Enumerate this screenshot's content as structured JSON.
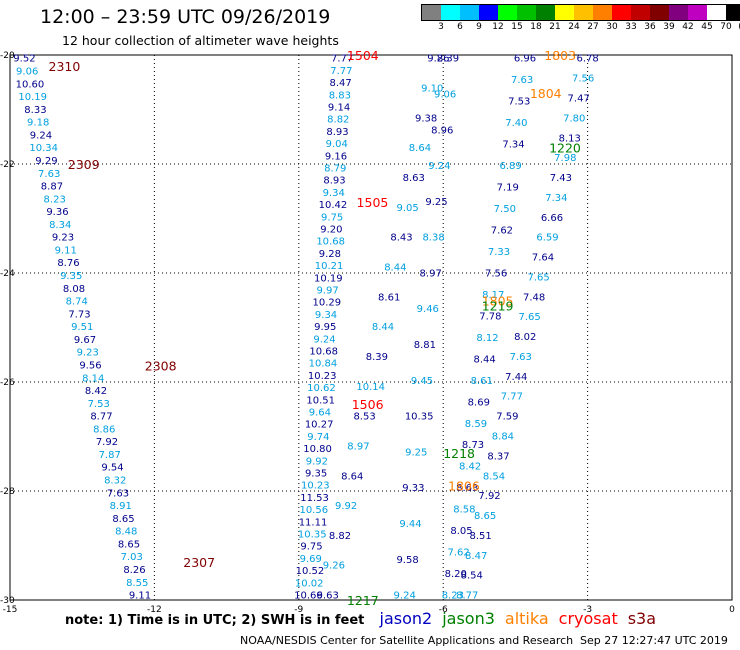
{
  "header": {
    "title": "12:00 – 23:59 UTC 09/26/2019",
    "subtitle": "12 hour collection of altimeter wave heights"
  },
  "scale": {
    "unit": "(ft)",
    "colors": [
      "#808080",
      "#00ffff",
      "#00bfff",
      "#0000ff",
      "#00ff00",
      "#00c000",
      "#008000",
      "#ffff00",
      "#ffc000",
      "#ff8000",
      "#ff0000",
      "#c00000",
      "#800000",
      "#800080",
      "#c000c0",
      "#ffffff",
      "#000000"
    ],
    "labels": [
      "3",
      "6",
      "9",
      "12",
      "15",
      "18",
      "21",
      "24",
      "27",
      "30",
      "33",
      "36",
      "39",
      "42",
      "45",
      "70"
    ]
  },
  "axes": {
    "x_ticks": [
      "-15",
      "-12",
      "-9",
      "-6",
      "-3",
      "0"
    ],
    "y_ticks": [
      "-20",
      "-22",
      "-24",
      "-26",
      "-28",
      "-30"
    ]
  },
  "tracks": [
    {
      "satellite": "jason2",
      "pass": "2310",
      "lon_top": -14.7,
      "lon_bottom": -12.3,
      "values": [
        "9.52",
        "9.06",
        "10.60",
        "10.19",
        "8.33",
        "9.18",
        "9.24",
        "10.34",
        "9.29",
        "7.63",
        "8.87",
        "8.23",
        "9.36",
        "8.34",
        "9.23",
        "9.11",
        "8.76",
        "9.35",
        "8.08",
        "8.74",
        "7.73",
        "9.51",
        "9.67",
        "9.23",
        "9.56",
        "8.14",
        "8.42",
        "7.53",
        "8.77",
        "8.86",
        "7.92",
        "7.87",
        "9.54",
        "8.32",
        "7.63",
        "8.91",
        "8.65",
        "8.48",
        "8.65",
        "7.03",
        "8.26",
        "8.55",
        "9.11"
      ]
    },
    {
      "satellite": "jason2",
      "pass": "1504",
      "lon_top": -8.1,
      "lon_bottom": -8.8,
      "values": [
        "7.77",
        "7.77",
        "8.47",
        "8.83",
        "9.14",
        "8.82",
        "8.93",
        "9.04",
        "9.16",
        "8.79",
        "8.93",
        "9.34",
        "10.42",
        "9.75",
        "9.20",
        "10.68",
        "9.28",
        "10.21",
        "10.19",
        "9.97",
        "10.29",
        "9.34",
        "9.95",
        "9.24",
        "10.68",
        "10.84",
        "10.23",
        "10.62",
        "10.51",
        "9.64",
        "10.27",
        "9.74",
        "10.80",
        "9.92",
        "9.35",
        "10.23",
        "11.53",
        "10.56",
        "11.11",
        "10.35",
        "9.75",
        "9.69",
        "10.52",
        "10.02",
        "10.66"
      ]
    },
    {
      "satellite": "jason2",
      "pass": "1217",
      "lon_top": -6.1,
      "lon_bottom": -8.4,
      "values": [
        "9.26",
        "9.10",
        "9.38",
        "8.64",
        "8.63",
        "9.05",
        "8.43",
        "8.44",
        "8.61",
        "8.44",
        "8.39",
        "10.14",
        "8.53",
        "8.97",
        "8.64",
        "9.92",
        "8.82",
        "9.26",
        "9.63"
      ]
    },
    {
      "satellite": "jason2",
      "pass": "1218",
      "lon_top": -5.9,
      "lon_bottom": -6.8,
      "values": [
        "8.39",
        "9.06",
        "8.96",
        "9.24",
        "9.25",
        "8.38",
        "8.97",
        "9.46",
        "8.81",
        "9.45",
        "10.35",
        "9.25",
        "9.33",
        "9.44",
        "9.58",
        "9.24"
      ]
    },
    {
      "satellite": "jason2",
      "pass": "1220",
      "lon_top": -4.3,
      "lon_bottom": -5.8,
      "values": [
        "6.96",
        "7.63",
        "7.53",
        "7.40",
        "7.34",
        "6.89",
        "7.19",
        "7.50",
        "7.62",
        "7.33",
        "7.56",
        "8.17",
        "7.78",
        "8.12",
        "8.44",
        "8.61",
        "8.69",
        "8.59",
        "8.73",
        "8.42",
        "8.63",
        "8.58",
        "8.05",
        "7.62",
        "8.20",
        "8.23"
      ]
    },
    {
      "satellite": "jason2",
      "pass": "1219",
      "lon_top": -3.0,
      "lon_bottom": -5.5,
      "values": [
        "6.78",
        "7.56",
        "7.47",
        "7.80",
        "8.13",
        "7.98",
        "7.43",
        "7.34",
        "6.66",
        "6.59",
        "7.64",
        "7.65",
        "7.48",
        "7.65",
        "8.02",
        "7.63",
        "7.44",
        "7.77",
        "7.59",
        "8.84",
        "8.37",
        "8.54",
        "7.92",
        "8.65",
        "8.51",
        "8.47",
        "8.54",
        "8.77"
      ]
    }
  ],
  "pass_labels": [
    {
      "text": "2310",
      "lon": -14.2,
      "lat": -20.2,
      "color": "#800000"
    },
    {
      "text": "2309",
      "lon": -13.8,
      "lat": -22.0,
      "color": "#800000"
    },
    {
      "text": "2308",
      "lon": -12.2,
      "lat": -25.7,
      "color": "#800000"
    },
    {
      "text": "2307",
      "lon": -11.4,
      "lat": -29.3,
      "color": "#800000"
    },
    {
      "text": "1504",
      "lon": -8.0,
      "lat": -20.0,
      "color": "#ff0000"
    },
    {
      "text": "1505",
      "lon": -7.8,
      "lat": -22.7,
      "color": "#ff0000"
    },
    {
      "text": "1506",
      "lon": -7.9,
      "lat": -26.4,
      "color": "#ff0000"
    },
    {
      "text": "1803",
      "lon": -3.9,
      "lat": -20.0,
      "color": "#ff8000"
    },
    {
      "text": "1804",
      "lon": -4.2,
      "lat": -20.7,
      "color": "#ff8000"
    },
    {
      "text": "1805",
      "lon": -5.2,
      "lat": -24.5,
      "color": "#ff8000"
    },
    {
      "text": "1806",
      "lon": -5.9,
      "lat": -27.9,
      "color": "#ff8000"
    },
    {
      "text": "1220",
      "lon": -3.8,
      "lat": -21.7,
      "color": "#008000"
    },
    {
      "text": "1219",
      "lon": -5.2,
      "lat": -24.6,
      "color": "#008000"
    },
    {
      "text": "1218",
      "lon": -6.0,
      "lat": -27.3,
      "color": "#008000"
    },
    {
      "text": "1217",
      "lon": -8.0,
      "lat": -30.0,
      "color": "#008000"
    }
  ],
  "footer": {
    "note": "note: 1) Time is in UTC; 2) SWH is in feet",
    "satellites": [
      {
        "name": "jason2",
        "color": "#0000c0"
      },
      {
        "name": "jason3",
        "color": "#008000"
      },
      {
        "name": "altika",
        "color": "#ff8000"
      },
      {
        "name": "cryosat",
        "color": "#ff0000"
      },
      {
        "name": "s3a",
        "color": "#800000"
      }
    ],
    "credit": "NOAA/NESDIS Center for Satellite Applications and Research",
    "generated": "Sep 27 12:27:47 UTC 2019"
  }
}
